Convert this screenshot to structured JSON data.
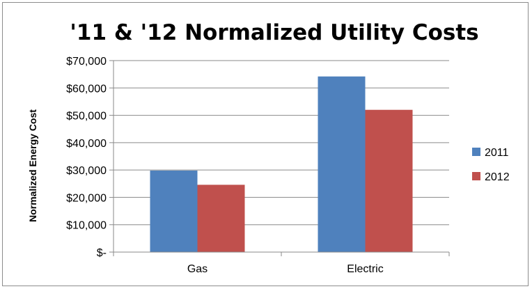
{
  "chart_data": {
    "type": "bar",
    "title": "'11 & '12  Normalized Utility Costs",
    "ylabel": "Normalized Energy Cost",
    "xlabel": "",
    "categories": [
      "Gas",
      "Electric"
    ],
    "series": [
      {
        "name": "2011",
        "color": "#4F81BD",
        "values": [
          29800,
          64200
        ]
      },
      {
        "name": "2012",
        "color": "#C0504D",
        "values": [
          24600,
          52000
        ]
      }
    ],
    "ylim": [
      0,
      70000
    ],
    "yticks": [
      0,
      10000,
      20000,
      30000,
      40000,
      50000,
      60000,
      70000
    ],
    "ytick_labels": [
      "$-",
      "$10,000",
      "$20,000",
      "$30,000",
      "$40,000",
      "$50,000",
      "$60,000",
      "$70,000"
    ],
    "grid": true,
    "legend_position": "right"
  }
}
